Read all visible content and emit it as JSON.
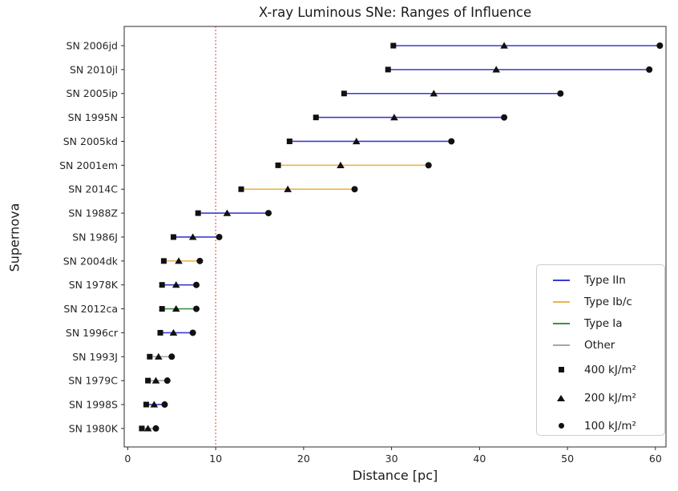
{
  "figure": {
    "title": "X-ray Luminous SNe: Ranges of Influence",
    "xlabel": "Distance [pc]",
    "ylabel": "Supernova"
  },
  "chart_data": {
    "type": "scatter",
    "subtype": "horizontal-range-dumbbell",
    "title": "X-ray Luminous SNe: Ranges of Influence",
    "xlabel": "Distance [pc]",
    "ylabel": "Supernova",
    "xlim": [
      -0.4,
      61.2
    ],
    "xticks": [
      0,
      10,
      20,
      30,
      40,
      50,
      60
    ],
    "grid": false,
    "legend_position": "lower right",
    "threshold_line": {
      "x": 10,
      "style": "dotted",
      "color": "#e03a3a"
    },
    "fluence_levels": [
      "400 kJ/m²",
      "200 kJ/m²",
      "100 kJ/m²"
    ],
    "rows": [
      {
        "name": "SN 2006jd",
        "type": "Type IIn",
        "d400": 30.2,
        "d200": 42.8,
        "d100": 60.5
      },
      {
        "name": "SN 2010jl",
        "type": "Type IIn",
        "d400": 29.6,
        "d200": 41.9,
        "d100": 59.3
      },
      {
        "name": "SN 2005ip",
        "type": "Type IIn",
        "d400": 24.6,
        "d200": 34.8,
        "d100": 49.2
      },
      {
        "name": "SN 1995N",
        "type": "Type IIn",
        "d400": 21.4,
        "d200": 30.3,
        "d100": 42.8
      },
      {
        "name": "SN 2005kd",
        "type": "Type IIn",
        "d400": 18.4,
        "d200": 26.0,
        "d100": 36.8
      },
      {
        "name": "SN 2001em",
        "type": "Type Ib/c",
        "d400": 17.1,
        "d200": 24.2,
        "d100": 34.2
      },
      {
        "name": "SN 2014C",
        "type": "Type Ib/c",
        "d400": 12.9,
        "d200": 18.2,
        "d100": 25.8
      },
      {
        "name": "SN 1988Z",
        "type": "Type IIn",
        "d400": 8.0,
        "d200": 11.3,
        "d100": 16.0
      },
      {
        "name": "SN 1986J",
        "type": "Type IIn",
        "d400": 5.2,
        "d200": 7.4,
        "d100": 10.4
      },
      {
        "name": "SN 2004dk",
        "type": "Type Ib/c",
        "d400": 4.1,
        "d200": 5.8,
        "d100": 8.2
      },
      {
        "name": "SN 1978K",
        "type": "Type IIn",
        "d400": 3.9,
        "d200": 5.5,
        "d100": 7.8
      },
      {
        "name": "SN 2012ca",
        "type": "Type Ia",
        "d400": 3.9,
        "d200": 5.5,
        "d100": 7.8
      },
      {
        "name": "SN 1996cr",
        "type": "Type IIn",
        "d400": 3.7,
        "d200": 5.2,
        "d100": 7.4
      },
      {
        "name": "SN 1993J",
        "type": "Other",
        "d400": 2.5,
        "d200": 3.5,
        "d100": 5.0
      },
      {
        "name": "SN 1979C",
        "type": "Other",
        "d400": 2.3,
        "d200": 3.2,
        "d100": 4.5
      },
      {
        "name": "SN 1998S",
        "type": "Type IIn",
        "d400": 2.1,
        "d200": 3.0,
        "d100": 4.2
      },
      {
        "name": "SN 1980K",
        "type": "Other",
        "d400": 1.6,
        "d200": 2.3,
        "d100": 3.2
      }
    ],
    "legend": {
      "types": [
        {
          "label": "Type IIn",
          "type_key": "Type IIn"
        },
        {
          "label": "Type Ib/c",
          "type_key": "Type Ib/c"
        },
        {
          "label": "Type Ia",
          "type_key": "Type Ia"
        },
        {
          "label": "Other",
          "type_key": "Other"
        }
      ],
      "markers": [
        {
          "label": "400 kJ/m²",
          "shape": "square"
        },
        {
          "label": "200 kJ/m²",
          "shape": "triangle"
        },
        {
          "label": "100 kJ/m²",
          "shape": "circle"
        }
      ]
    },
    "colors": {
      "Type IIn": "#3b3bd1",
      "Type Ib/c": "#edb44e",
      "Type Ia": "#3a9442",
      "Other": "#a6a6a6",
      "marker": "#111111",
      "threshold": "#e03a3a",
      "spine": "#2b2b2b",
      "tick_text": "#262626"
    }
  }
}
